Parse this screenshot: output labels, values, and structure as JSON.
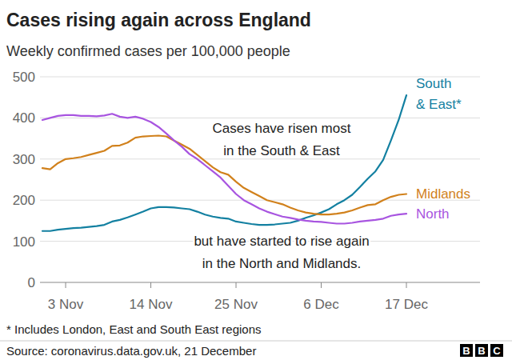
{
  "chart_data": {
    "type": "line",
    "title": "Cases rising again across England",
    "subtitle": "Weekly confirmed cases per 100,000 people",
    "annotations": [
      [
        "Cases have risen most",
        "in the South & East"
      ],
      [
        "but have started to rise again",
        "in the North and Midlands."
      ]
    ],
    "footnote": "* Includes London, East and South East regions",
    "source": "Source: coronavirus.data.gov.uk, 21 December",
    "logo": "BBC",
    "categories": [
      null,
      null,
      null,
      "3 Nov",
      null,
      null,
      null,
      null,
      null,
      null,
      null,
      null,
      null,
      null,
      "14 Nov",
      null,
      null,
      null,
      null,
      null,
      null,
      null,
      null,
      null,
      null,
      "25 Nov",
      null,
      null,
      null,
      null,
      null,
      null,
      null,
      null,
      null,
      null,
      "6 Dec",
      null,
      null,
      null,
      null,
      null,
      null,
      null,
      null,
      null,
      null,
      "17 Dec"
    ],
    "series": [
      {
        "name": "South & East*",
        "color": "#1380a1",
        "values": [
          125,
          125,
          128,
          130,
          132,
          133,
          135,
          137,
          140,
          148,
          152,
          158,
          165,
          172,
          180,
          183,
          183,
          182,
          180,
          178,
          172,
          165,
          160,
          157,
          155,
          148,
          145,
          142,
          140,
          140,
          141,
          143,
          145,
          150,
          157,
          163,
          170,
          178,
          190,
          200,
          213,
          232,
          252,
          270,
          298,
          345,
          395,
          455
        ]
      },
      {
        "name": "Midlands",
        "color": "#d1811c",
        "values": [
          278,
          275,
          290,
          300,
          302,
          305,
          310,
          315,
          320,
          332,
          333,
          340,
          352,
          355,
          356,
          357,
          355,
          345,
          335,
          325,
          310,
          295,
          280,
          268,
          262,
          245,
          230,
          220,
          210,
          200,
          195,
          190,
          182,
          175,
          170,
          167,
          165,
          165,
          167,
          170,
          175,
          182,
          188,
          190,
          200,
          208,
          213,
          215
        ]
      },
      {
        "name": "North",
        "color": "#a855e0",
        "values": [
          395,
          400,
          405,
          407,
          407,
          405,
          405,
          404,
          406,
          410,
          403,
          400,
          403,
          398,
          390,
          378,
          362,
          345,
          330,
          312,
          300,
          285,
          270,
          255,
          235,
          215,
          200,
          190,
          180,
          172,
          166,
          160,
          157,
          153,
          150,
          148,
          147,
          145,
          143,
          143,
          145,
          148,
          150,
          152,
          155,
          162,
          165,
          167
        ]
      }
    ],
    "ylim": [
      0,
      500
    ],
    "yticks": [
      0,
      100,
      200,
      300,
      400,
      500
    ],
    "grid": true
  }
}
